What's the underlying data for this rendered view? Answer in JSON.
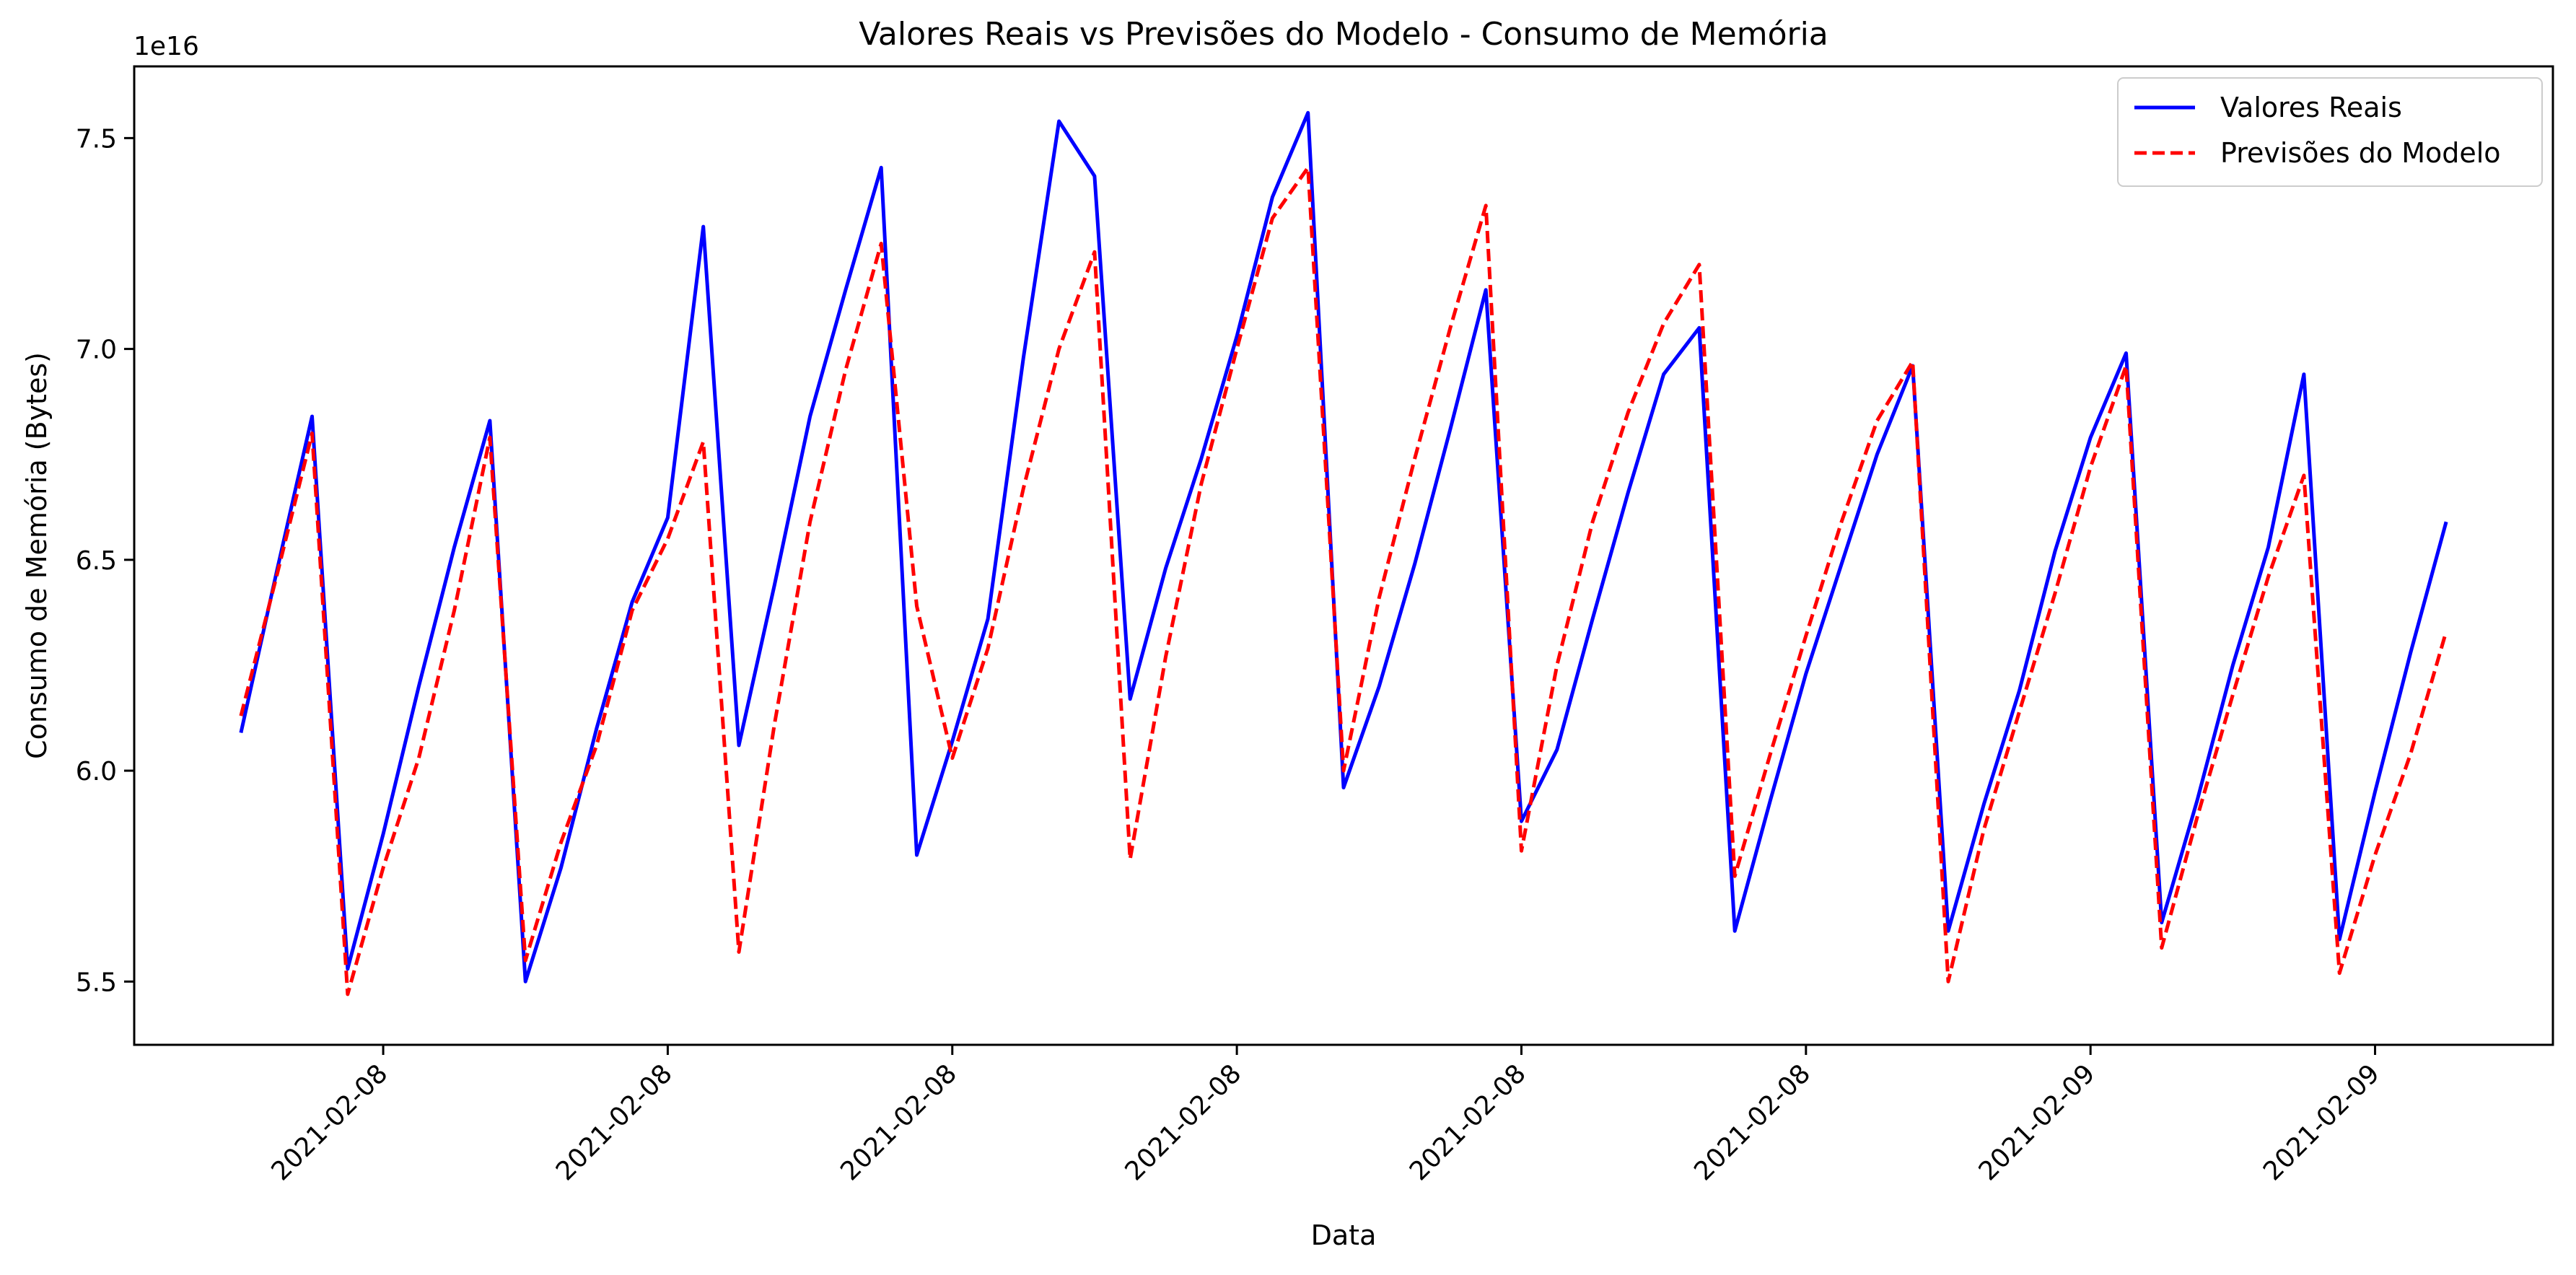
{
  "chart_data": {
    "type": "line",
    "title": "Valores Reais vs Previsões do Modelo - Consumo de Memória",
    "xlabel": "Data",
    "ylabel": "Consumo de Memória (Bytes)",
    "y_multiplier_label": "1e16",
    "y_unit_scale": 1e+16,
    "ylim": [
      5.35,
      7.67
    ],
    "y_ticks": [
      5.5,
      6.0,
      6.5,
      7.0,
      7.5
    ],
    "y_tick_labels": [
      "5.5",
      "6.0",
      "6.5",
      "7.0",
      "7.5"
    ],
    "x_tick_labels": [
      "2021-02-08",
      "2021-02-08",
      "2021-02-08",
      "2021-02-08",
      "2021-02-08",
      "2021-02-08",
      "2021-02-09",
      "2021-02-09"
    ],
    "x_tick_positions": [
      4,
      12,
      20,
      28,
      36,
      44,
      52,
      60
    ],
    "xlim": [
      -3,
      65
    ],
    "legend_position": "top-right",
    "grid": false,
    "x": [
      0,
      1,
      2,
      3,
      4,
      5,
      6,
      7,
      8,
      9,
      10,
      11,
      12,
      13,
      14,
      15,
      16,
      17,
      18,
      19,
      20,
      21,
      22,
      23,
      24,
      25,
      26,
      27,
      28,
      29,
      30,
      31,
      32,
      33,
      34,
      35,
      36,
      37,
      38,
      39,
      40,
      41,
      42,
      43,
      44,
      45,
      46,
      47,
      48,
      49,
      50,
      51,
      52,
      53,
      54,
      55,
      56,
      57,
      58,
      59,
      60,
      61,
      62
    ],
    "series": [
      {
        "name": "Valores Reais",
        "color": "#0000ff",
        "style": "solid",
        "values": [
          6.09,
          6.47,
          6.84,
          5.53,
          5.85,
          6.2,
          6.53,
          6.83,
          5.5,
          5.77,
          6.1,
          6.4,
          6.6,
          7.29,
          6.06,
          6.44,
          6.84,
          7.14,
          7.43,
          5.8,
          6.07,
          6.36,
          6.98,
          7.54,
          7.41,
          6.17,
          6.48,
          6.74,
          7.03,
          7.36,
          7.56,
          5.96,
          6.2,
          6.49,
          6.81,
          7.14,
          5.88,
          6.05,
          6.36,
          6.66,
          6.94,
          7.05,
          5.62,
          5.93,
          6.23,
          6.49,
          6.75,
          6.96,
          5.62,
          5.92,
          6.19,
          6.52,
          6.79,
          6.99,
          5.64,
          5.93,
          6.25,
          6.53,
          6.94,
          5.6,
          5.95,
          6.28,
          6.59
        ]
      },
      {
        "name": "Previsões do Modelo",
        "color": "#ff0000",
        "style": "dashed",
        "values": [
          6.13,
          6.46,
          6.8,
          5.47,
          5.77,
          6.03,
          6.38,
          6.79,
          5.55,
          5.83,
          6.06,
          6.38,
          6.55,
          6.78,
          5.57,
          6.11,
          6.59,
          6.95,
          7.25,
          6.39,
          6.03,
          6.29,
          6.67,
          7.0,
          7.23,
          5.79,
          6.27,
          6.68,
          7.0,
          7.31,
          7.43,
          6.0,
          6.41,
          6.74,
          7.05,
          7.34,
          5.81,
          6.25,
          6.59,
          6.85,
          7.06,
          7.2,
          5.75,
          6.04,
          6.32,
          6.59,
          6.83,
          6.97,
          5.5,
          5.86,
          6.14,
          6.42,
          6.72,
          6.96,
          5.58,
          5.89,
          6.18,
          6.46,
          6.7,
          5.52,
          5.8,
          6.04,
          6.33
        ]
      }
    ]
  }
}
